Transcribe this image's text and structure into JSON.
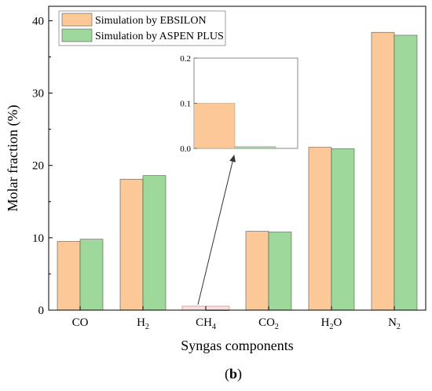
{
  "chart_data": {
    "type": "bar",
    "title": "",
    "xlabel": "Syngas components",
    "ylabel": "Molar fraction (%)",
    "ylim": [
      0,
      42
    ],
    "yticks": [
      0,
      10,
      20,
      30,
      40
    ],
    "categories": [
      {
        "base": "CO",
        "sub": ""
      },
      {
        "base": "H",
        "sub": "2"
      },
      {
        "base": "CH",
        "sub": "4"
      },
      {
        "base": "CO",
        "sub": "2"
      },
      {
        "base": "H",
        "sub": "2",
        "tail": "O"
      },
      {
        "base": "N",
        "sub": "2"
      }
    ],
    "series": [
      {
        "name": "Simulation by EBSILON",
        "color": "#fdc897",
        "values": [
          9.5,
          18.1,
          0.1,
          10.9,
          22.5,
          38.4
        ]
      },
      {
        "name": "Simulation by ASPEN PLUS",
        "color": "#9ed99b",
        "values": [
          9.8,
          18.6,
          0.004,
          10.8,
          22.3,
          38.0
        ]
      }
    ],
    "legend_position": "top-left",
    "grid": false,
    "inset": {
      "ylim": [
        0,
        0.2
      ],
      "yticks": [
        "0.0",
        "0.1",
        "0.2"
      ],
      "category_index": 2
    },
    "panel_label": "b"
  }
}
